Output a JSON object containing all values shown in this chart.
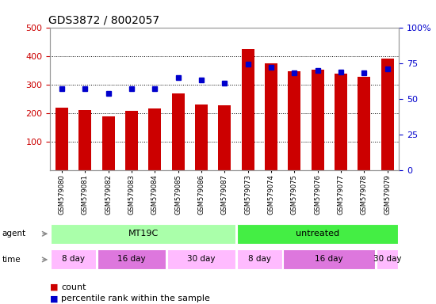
{
  "title": "GDS3872 / 8002057",
  "samples": [
    "GSM579080",
    "GSM579081",
    "GSM579082",
    "GSM579083",
    "GSM579084",
    "GSM579085",
    "GSM579086",
    "GSM579087",
    "GSM579073",
    "GSM579074",
    "GSM579075",
    "GSM579076",
    "GSM579077",
    "GSM579078",
    "GSM579079"
  ],
  "counts": [
    220,
    212,
    188,
    207,
    215,
    270,
    230,
    228,
    425,
    375,
    347,
    352,
    337,
    327,
    390
  ],
  "percentiles": [
    57,
    57,
    54,
    57,
    57,
    65,
    63,
    61,
    74,
    72,
    68,
    70,
    69,
    68,
    71
  ],
  "bar_color": "#cc0000",
  "dot_color": "#0000cc",
  "ylim_left": [
    0,
    500
  ],
  "ylim_right": [
    0,
    100
  ],
  "yticks_left": [
    100,
    200,
    300,
    400,
    500
  ],
  "yticks_right": [
    0,
    25,
    50,
    75,
    100
  ],
  "yticklabels_right": [
    "0",
    "25",
    "50",
    "75",
    "100%"
  ],
  "agent_groups": [
    {
      "label": "MT19C",
      "start": 0,
      "end": 8,
      "color": "#aaffaa"
    },
    {
      "label": "untreated",
      "start": 8,
      "end": 15,
      "color": "#44ee44"
    }
  ],
  "time_groups": [
    {
      "label": "8 day",
      "start": 0,
      "end": 2,
      "color": "#ffbbff"
    },
    {
      "label": "16 day",
      "start": 2,
      "end": 5,
      "color": "#dd77dd"
    },
    {
      "label": "30 day",
      "start": 5,
      "end": 8,
      "color": "#ffbbff"
    },
    {
      "label": "8 day",
      "start": 8,
      "end": 10,
      "color": "#ffbbff"
    },
    {
      "label": "16 day",
      "start": 10,
      "end": 14,
      "color": "#dd77dd"
    },
    {
      "label": "30 day",
      "start": 14,
      "end": 15,
      "color": "#ffbbff"
    }
  ],
  "bg_color": "#ffffff",
  "tick_label_color_left": "#cc0000",
  "tick_label_color_right": "#0000cc"
}
